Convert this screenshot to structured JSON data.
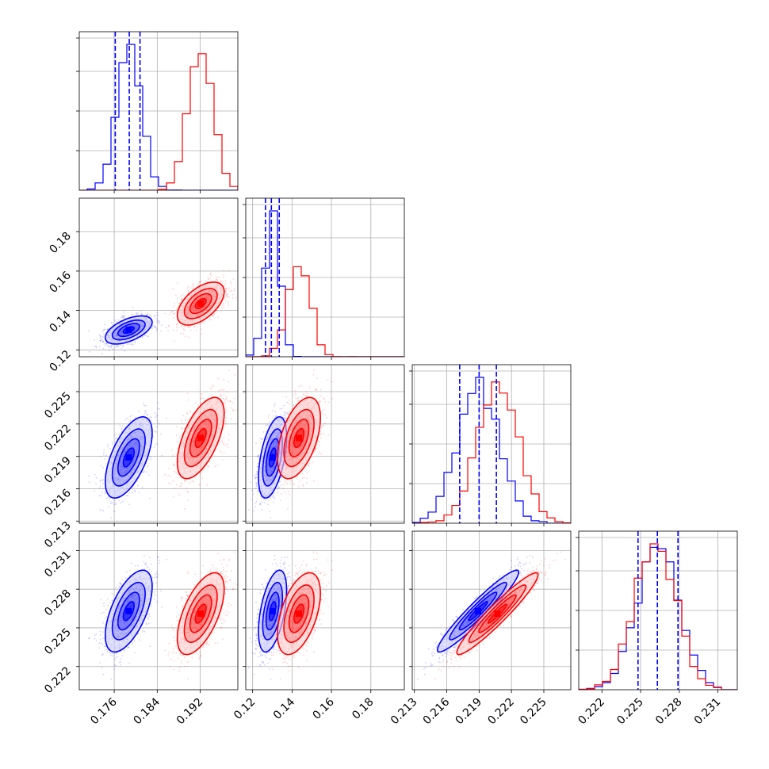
{
  "chart_data": {
    "type": "scatter",
    "variant": "corner-plot",
    "grid": true,
    "series_colors": {
      "blue": "#0000ff",
      "red": "#ff0000"
    },
    "params": [
      {
        "id": "p0",
        "range": [
          0.1695,
          0.199
        ],
        "ticks": [
          0.176,
          0.184,
          0.192
        ],
        "tick_labels": [
          "0.176",
          "0.184",
          "0.192"
        ]
      },
      {
        "id": "p1",
        "range": [
          0.1165,
          0.197
        ],
        "ticks": [
          0.12,
          0.14,
          0.16,
          0.18
        ],
        "tick_labels": [
          "0.12",
          "0.14",
          "0.16",
          "0.18"
        ]
      },
      {
        "id": "p2",
        "range": [
          0.2128,
          0.2275
        ],
        "ticks": [
          0.213,
          0.216,
          0.219,
          0.222,
          0.225
        ],
        "tick_labels": [
          "0.213",
          "0.216",
          "0.219",
          "0.222",
          "0.225"
        ]
      },
      {
        "id": "p3",
        "range": [
          0.2202,
          0.2325
        ],
        "ticks": [
          0.222,
          0.225,
          0.228,
          0.231
        ],
        "tick_labels": [
          "0.222",
          "0.225",
          "0.228",
          "0.231"
        ]
      }
    ],
    "series": [
      {
        "color": "blue",
        "mean": [
          0.1787,
          0.1301,
          0.2189,
          0.2263
        ],
        "sd": [
          0.0022,
          0.0036,
          0.0019,
          0.0016
        ],
        "corr": [
          [
            1,
            0.55,
            0.6,
            0.6
          ],
          [
            0.55,
            1,
            0.5,
            0.5
          ],
          [
            0.6,
            0.5,
            1,
            0.95
          ],
          [
            0.6,
            0.5,
            0.95,
            1
          ]
        ],
        "quantiles": [
          [
            0.1762,
            0.1788,
            0.1808
          ],
          [
            0.1265,
            0.1295,
            0.1335
          ],
          [
            0.2172,
            0.219,
            0.2206
          ],
          [
            0.2248,
            0.2263,
            0.2279
          ]
        ]
      },
      {
        "color": "red",
        "mean": [
          0.1921,
          0.1435,
          0.2207,
          0.2261
        ],
        "sd": [
          0.0022,
          0.0055,
          0.0019,
          0.0016
        ],
        "corr": [
          [
            1,
            0.55,
            0.6,
            0.6
          ],
          [
            0.55,
            1,
            0.5,
            0.5
          ],
          [
            0.6,
            0.5,
            1,
            0.95
          ],
          [
            0.6,
            0.5,
            0.95,
            1
          ]
        ]
      }
    ]
  }
}
